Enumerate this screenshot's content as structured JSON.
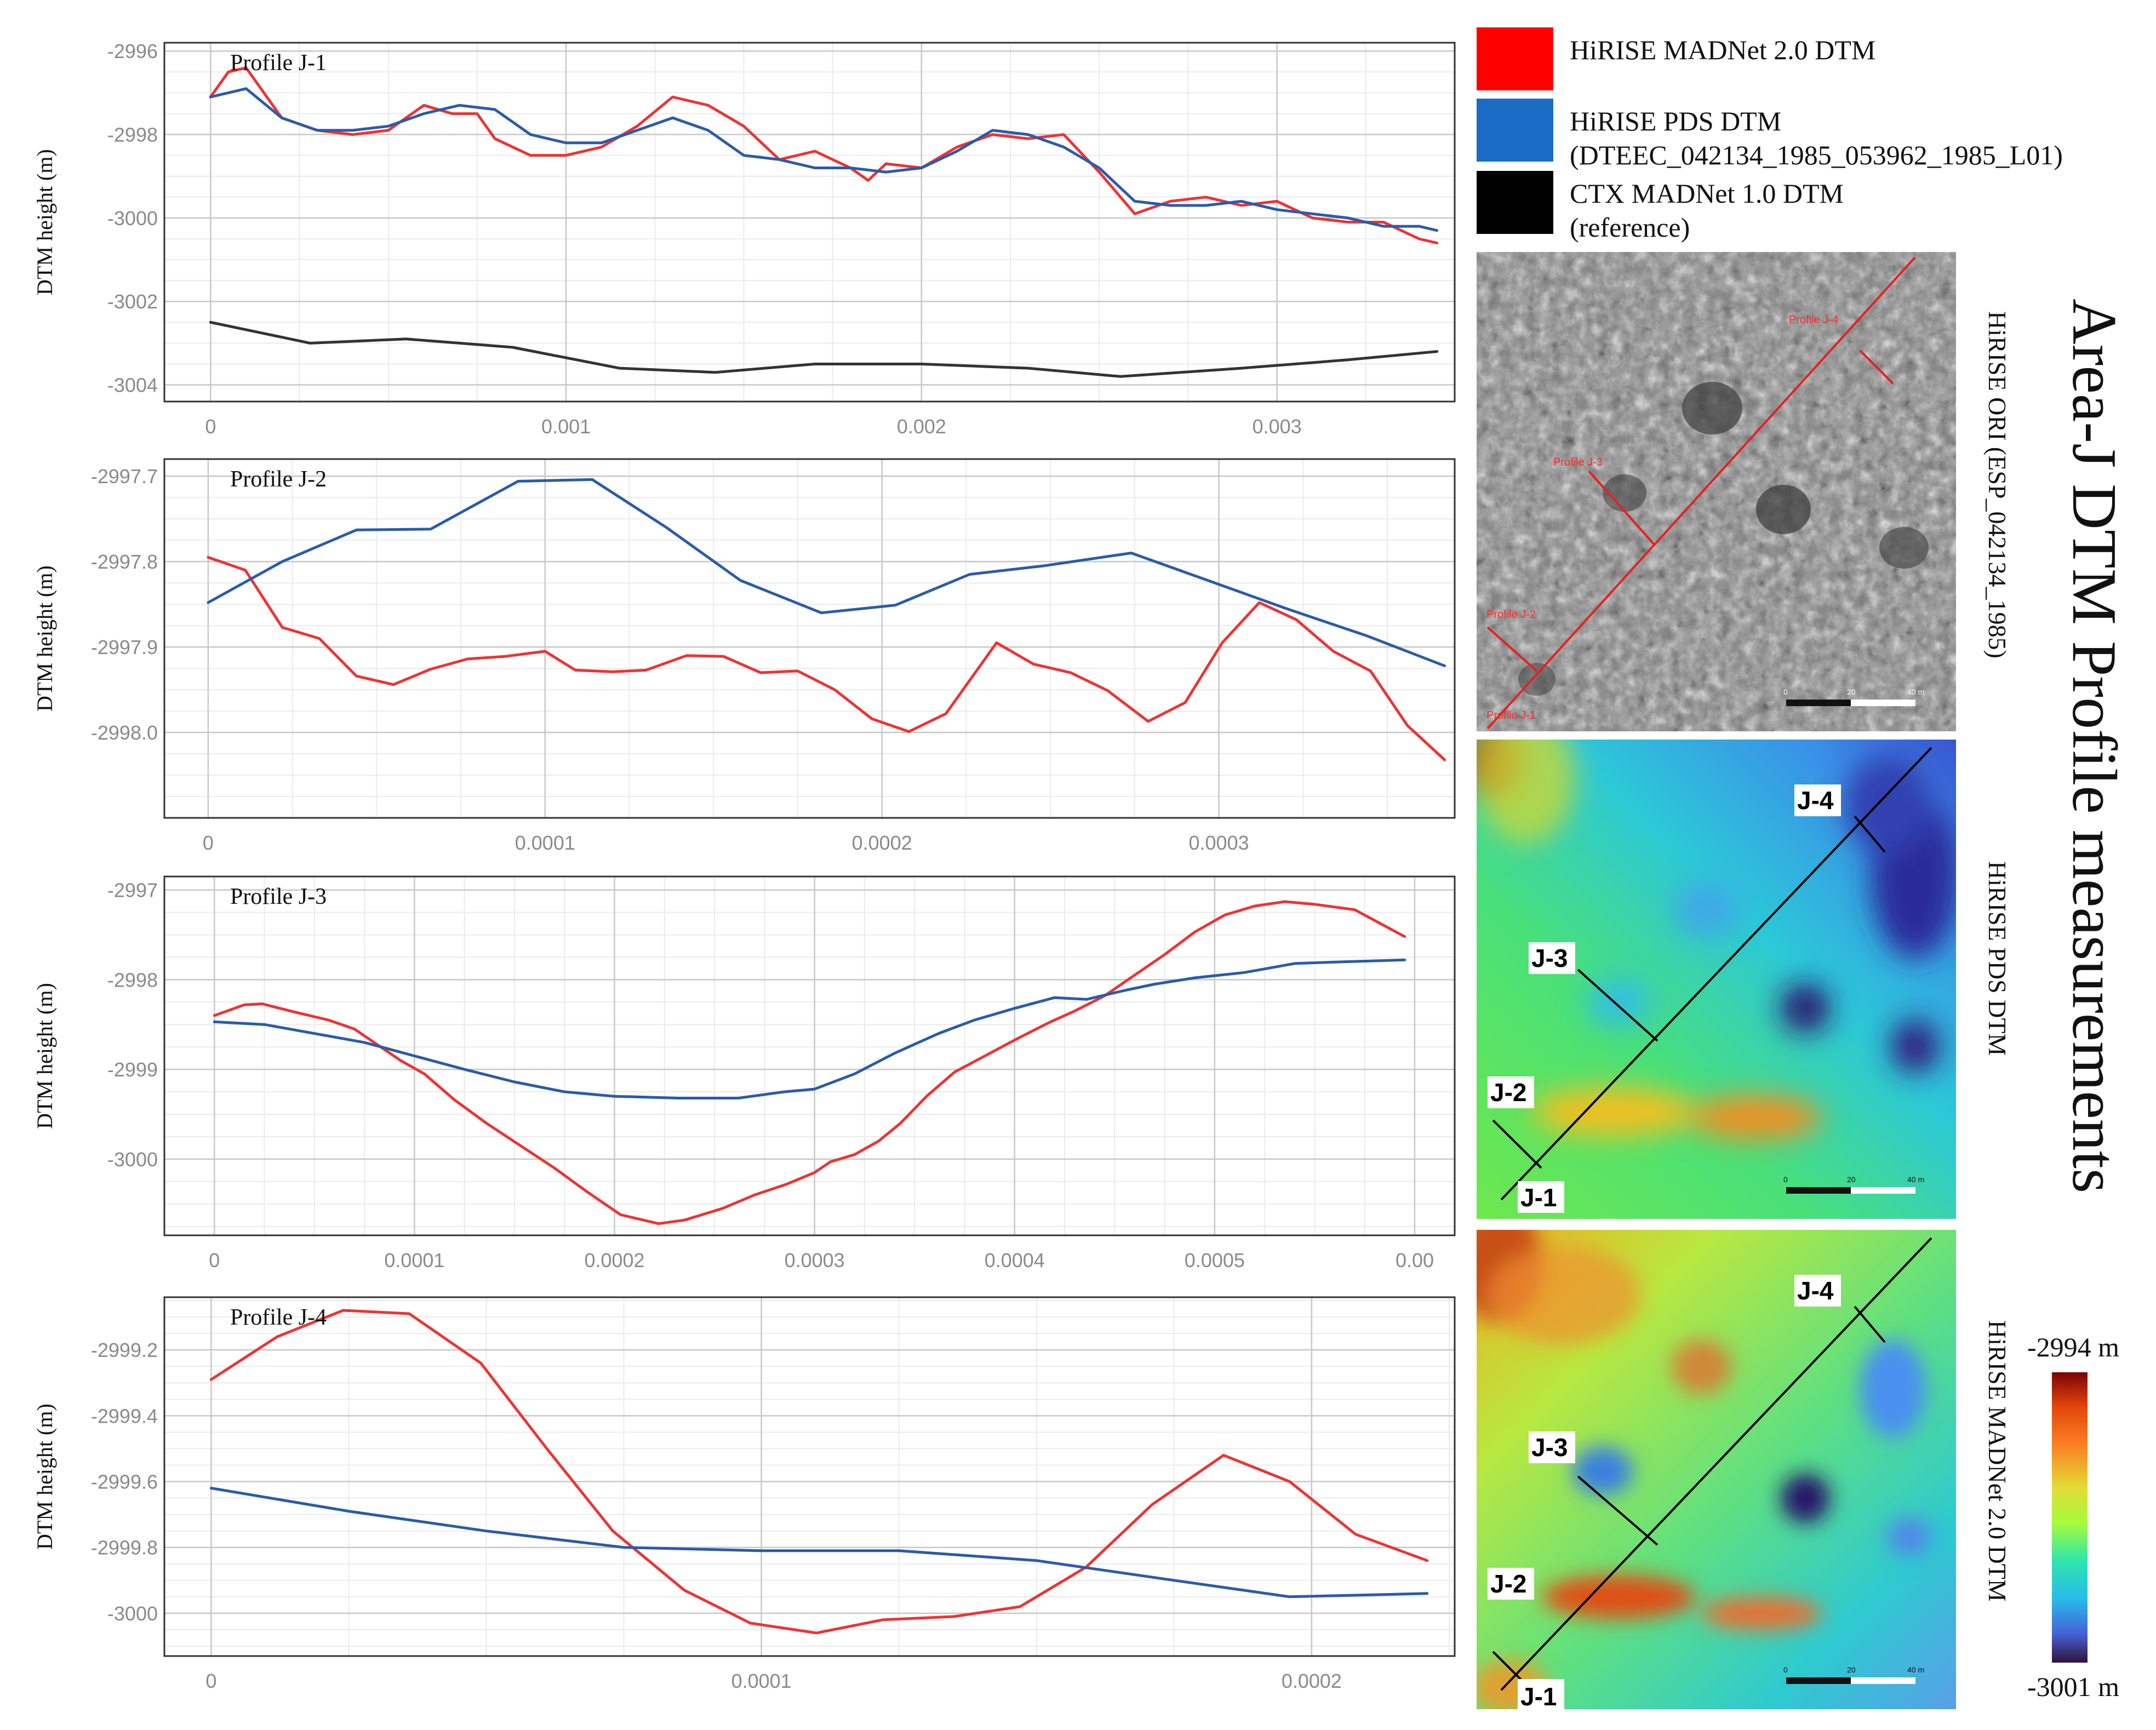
{
  "chart_data": [
    {
      "type": "line",
      "title": "Profile J-1",
      "ylabel": "DTM height (m)",
      "xlabel": "",
      "xlim": [
        -0.00013,
        0.0035
      ],
      "ylim": [
        -3004.4,
        -2995.8
      ],
      "xticks": [
        0,
        0.001,
        0.002,
        0.003
      ],
      "xtick_labels": [
        "0",
        "0.001",
        "0.002",
        "0.003"
      ],
      "yticks": [
        -2996,
        -2998,
        -3000,
        -3002,
        -3004
      ],
      "ytick_labels": [
        "-2996",
        "-2998",
        "-3000",
        "-3002",
        "-3004"
      ],
      "grid": true,
      "series": [
        {
          "name": "HiRISE MADNet 2.0 DTM",
          "color": "#ee3333",
          "x": [
            0,
            5e-05,
            0.0001,
            0.00015,
            0.0002,
            0.0003,
            0.0004,
            0.0005,
            0.0006,
            0.00068,
            0.00075,
            0.0008,
            0.0009,
            0.001,
            0.0011,
            0.0012,
            0.0013,
            0.0014,
            0.0015,
            0.0016,
            0.0017,
            0.0018,
            0.00185,
            0.0019,
            0.002,
            0.0021,
            0.0022,
            0.0023,
            0.0024,
            0.0025,
            0.0026,
            0.0027,
            0.0028,
            0.0029,
            0.003,
            0.0031,
            0.0032,
            0.0033,
            0.0034,
            0.00345
          ],
          "y": [
            -2997.1,
            -2996.5,
            -2996.4,
            -2997.0,
            -2997.6,
            -2997.9,
            -2998.0,
            -2997.9,
            -2997.3,
            -2997.5,
            -2997.5,
            -2998.1,
            -2998.5,
            -2998.5,
            -2998.3,
            -2997.8,
            -2997.1,
            -2997.3,
            -2997.8,
            -2998.6,
            -2998.4,
            -2998.8,
            -2999.1,
            -2998.7,
            -2998.8,
            -2998.3,
            -2998.0,
            -2998.1,
            -2998.0,
            -2998.9,
            -2999.9,
            -2999.6,
            -2999.5,
            -2999.7,
            -2999.6,
            -3000.0,
            -3000.1,
            -3000.1,
            -3000.5,
            -3000.6
          ]
        },
        {
          "name": "HiRISE PDS DTM",
          "color": "#2a5bab",
          "x": [
            0,
            0.0001,
            0.0002,
            0.0003,
            0.0004,
            0.0005,
            0.0006,
            0.0007,
            0.0008,
            0.0009,
            0.001,
            0.0011,
            0.0012,
            0.0013,
            0.0014,
            0.0015,
            0.0016,
            0.0017,
            0.0018,
            0.0019,
            0.002,
            0.0021,
            0.0022,
            0.0023,
            0.0024,
            0.0025,
            0.0026,
            0.0027,
            0.0028,
            0.0029,
            0.003,
            0.0031,
            0.0032,
            0.0033,
            0.0034,
            0.00345
          ],
          "y": [
            -2997.1,
            -2996.9,
            -2997.6,
            -2997.9,
            -2997.9,
            -2997.8,
            -2997.5,
            -2997.3,
            -2997.4,
            -2998.0,
            -2998.2,
            -2998.2,
            -2997.9,
            -2997.6,
            -2997.9,
            -2998.5,
            -2998.6,
            -2998.8,
            -2998.8,
            -2998.9,
            -2998.8,
            -2998.4,
            -2997.9,
            -2998.0,
            -2998.3,
            -2998.8,
            -2999.6,
            -2999.7,
            -2999.7,
            -2999.6,
            -2999.8,
            -2999.9,
            -3000.0,
            -3000.2,
            -3000.2,
            -3000.3
          ]
        },
        {
          "name": "CTX MADNet 1.0 DTM",
          "color": "#333333",
          "x": [
            0,
            0.00028,
            0.00055,
            0.00085,
            0.00115,
            0.00142,
            0.0017,
            0.002,
            0.0023,
            0.00256,
            0.0029,
            0.0032,
            0.00345
          ],
          "y": [
            -3002.5,
            -3003.0,
            -3002.9,
            -3003.1,
            -3003.6,
            -3003.7,
            -3003.5,
            -3003.5,
            -3003.6,
            -3003.8,
            -3003.6,
            -3003.4,
            -3003.2
          ]
        }
      ]
    },
    {
      "type": "line",
      "title": "Profile J-2",
      "ylabel": "DTM height (m)",
      "xlabel": "",
      "xlim": [
        -1.3e-05,
        0.00037
      ],
      "ylim": [
        -2998.1,
        -2997.68
      ],
      "xticks": [
        0,
        0.0001,
        0.0002,
        0.0003
      ],
      "xtick_labels": [
        "0",
        "0.0001",
        "0.0002",
        "0.0003"
      ],
      "yticks": [
        -2997.7,
        -2997.8,
        -2997.9,
        -2998.0
      ],
      "ytick_labels": [
        "-2997.7",
        "-2997.8",
        "-2997.9",
        "-2998.0"
      ],
      "grid": true,
      "series": [
        {
          "name": "HiRISE MADNet 2.0 DTM",
          "color": "#ee3333",
          "x": [
            0,
            1.1e-05,
            2.2e-05,
            3.3e-05,
            4.4e-05,
            5.5e-05,
            6.6e-05,
            7.7e-05,
            8.8e-05,
            0.0001,
            0.000109,
            0.00012,
            0.00013,
            0.000142,
            0.000153,
            0.000164,
            0.000175,
            0.000186,
            0.000197,
            0.000208,
            0.000219,
            0.000234,
            0.000245,
            0.000256,
            0.000267,
            0.000279,
            0.00029,
            0.000301,
            0.000312,
            0.000323,
            0.000334,
            0.000345,
            0.000356,
            0.000367
          ],
          "y": [
            -2997.795,
            -2997.81,
            -2997.877,
            -2997.89,
            -2997.934,
            -2997.944,
            -2997.926,
            -2997.914,
            -2997.911,
            -2997.905,
            -2997.927,
            -2997.929,
            -2997.927,
            -2997.91,
            -2997.911,
            -2997.93,
            -2997.928,
            -2997.95,
            -2997.984,
            -2997.999,
            -2997.978,
            -2997.895,
            -2997.92,
            -2997.93,
            -2997.951,
            -2997.987,
            -2997.965,
            -2997.895,
            -2997.848,
            -2997.868,
            -2997.905,
            -2997.928,
            -2997.992,
            -2998.032
          ]
        },
        {
          "name": "HiRISE PDS DTM",
          "color": "#2a5bab",
          "x": [
            0,
            2.2e-05,
            4.4e-05,
            6.6e-05,
            9.2e-05,
            0.000114,
            0.000136,
            0.000158,
            0.000182,
            0.000204,
            0.000226,
            0.000248,
            0.000274,
            0.000296,
            0.00032,
            0.000344,
            0.000367
          ],
          "y": [
            -2997.848,
            -2997.8,
            -2997.763,
            -2997.762,
            -2997.706,
            -2997.704,
            -2997.76,
            -2997.822,
            -2997.86,
            -2997.851,
            -2997.815,
            -2997.805,
            -2997.79,
            -2997.821,
            -2997.855,
            -2997.887,
            -2997.922
          ]
        }
      ]
    },
    {
      "type": "line",
      "title": "Profile J-3",
      "ylabel": "DTM height (m)",
      "xlabel": "",
      "xlim": [
        -2.5e-05,
        0.00062
      ],
      "ylim": [
        -3000.85,
        -2996.85
      ],
      "xticks": [
        0,
        0.0001,
        0.0002,
        0.0003,
        0.0004,
        0.0005,
        0.0006
      ],
      "xtick_labels": [
        "0",
        "0.0001",
        "0.0002",
        "0.0003",
        "0.0004",
        "0.0005",
        "0.00"
      ],
      "yticks": [
        -2997,
        -2998,
        -2999,
        -3000
      ],
      "ytick_labels": [
        "-2997",
        "-2998",
        "-2999",
        "-3000"
      ],
      "grid": true,
      "series": [
        {
          "name": "HiRISE MADNet 2.0 DTM",
          "color": "#ee3333",
          "x": [
            0,
            1.5e-05,
            2.4e-05,
            4e-05,
            5.7e-05,
            7e-05,
            9.3e-05,
            0.000105,
            0.00012,
            0.000136,
            0.000153,
            0.00017,
            0.000186,
            0.000203,
            0.000222,
            0.000235,
            0.000254,
            0.00027,
            0.000286,
            0.0003,
            0.000308,
            0.00032,
            0.000332,
            0.000343,
            0.000356,
            0.00037,
            0.000386,
            0.000402,
            0.000418,
            0.00043,
            0.000445,
            0.00046,
            0.000475,
            0.00049,
            0.000505,
            0.00052,
            0.000535,
            0.00055,
            0.00057,
            0.000595
          ],
          "y": [
            -2998.4,
            -2998.28,
            -2998.27,
            -2998.36,
            -2998.45,
            -2998.55,
            -2998.9,
            -2999.05,
            -2999.34,
            -2999.6,
            -2999.85,
            -3000.1,
            -3000.36,
            -3000.62,
            -3000.72,
            -3000.68,
            -3000.55,
            -3000.4,
            -3000.28,
            -3000.15,
            -3000.03,
            -2999.95,
            -2999.8,
            -2999.6,
            -2999.3,
            -2999.03,
            -2998.84,
            -2998.65,
            -2998.47,
            -2998.35,
            -2998.18,
            -2997.95,
            -2997.72,
            -2997.47,
            -2997.28,
            -2997.18,
            -2997.13,
            -2997.16,
            -2997.22,
            -2997.52
          ]
        },
        {
          "name": "HiRISE PDS DTM",
          "color": "#2a5bab",
          "x": [
            0,
            2.5e-05,
            5e-05,
            7.5e-05,
            0.0001,
            0.000125,
            0.00015,
            0.000175,
            0.0002,
            0.000232,
            0.000262,
            0.000285,
            0.0003,
            0.00032,
            0.00034,
            0.000362,
            0.00038,
            0.0004,
            0.00042,
            0.000436,
            0.000455,
            0.00047,
            0.00049,
            0.000515,
            0.00054,
            0.000565,
            0.000595
          ],
          "y": [
            -2998.47,
            -2998.5,
            -2998.6,
            -2998.7,
            -2998.85,
            -2999.0,
            -2999.14,
            -2999.25,
            -2999.3,
            -2999.32,
            -2999.32,
            -2999.25,
            -2999.22,
            -2999.05,
            -2998.82,
            -2998.6,
            -2998.45,
            -2998.32,
            -2998.2,
            -2998.22,
            -2998.12,
            -2998.05,
            -2997.98,
            -2997.92,
            -2997.82,
            -2997.8,
            -2997.78
          ]
        }
      ]
    },
    {
      "type": "line",
      "title": "Profile J-4",
      "ylabel": "DTM height (m)",
      "xlabel": "",
      "xlim": [
        -8.5e-06,
        0.000226
      ],
      "ylim": [
        -3000.13,
        -2999.04
      ],
      "xticks": [
        0,
        0.0001,
        0.0002
      ],
      "xtick_labels": [
        "0",
        "0.0001",
        "0.0002"
      ],
      "yticks": [
        -2999.2,
        -2999.4,
        -2999.6,
        -2999.8,
        -3000
      ],
      "ytick_labels": [
        "-2999.2",
        "-2999.4",
        "-2999.6",
        "-2999.8",
        "-3000"
      ],
      "grid": true,
      "series": [
        {
          "name": "HiRISE MADNet 2.0 DTM",
          "color": "#ee3333",
          "x": [
            0,
            1.2e-05,
            2.4e-05,
            3.6e-05,
            4.9e-05,
            6.1e-05,
            7.3e-05,
            8.6e-05,
            9.8e-05,
            0.00011,
            0.000122,
            0.000135,
            0.000147,
            0.000159,
            0.000171,
            0.000184,
            0.000196,
            0.000208,
            0.000221
          ],
          "y": [
            -2999.29,
            -2999.16,
            -2999.08,
            -2999.09,
            -2999.24,
            -2999.5,
            -2999.75,
            -2999.93,
            -3000.03,
            -3000.06,
            -3000.02,
            -3000.01,
            -2999.98,
            -2999.86,
            -2999.67,
            -2999.52,
            -2999.6,
            -2999.76,
            -2999.84
          ]
        },
        {
          "name": "HiRISE PDS DTM",
          "color": "#2a5bab",
          "x": [
            0,
            2.5e-05,
            5e-05,
            7.5e-05,
            0.0001,
            0.000125,
            0.00015,
            0.000175,
            0.000196,
            0.000221
          ],
          "y": [
            -2999.62,
            -2999.69,
            -2999.75,
            -2999.8,
            -2999.81,
            -2999.81,
            -2999.84,
            -2999.9,
            -2999.95,
            -2999.94
          ]
        }
      ]
    }
  ],
  "legend": {
    "items": [
      {
        "color": "#ff0000",
        "lines": [
          "HiRISE MADNet 2.0 DTM"
        ]
      },
      {
        "color": "#1a6cc4",
        "lines": [
          "HiRISE PDS DTM",
          "(DTEEC_042134_1985_053962_1985_L01)"
        ]
      },
      {
        "color": "#000000",
        "lines": [
          "CTX MADNet 1.0 DTM",
          "(reference)"
        ]
      }
    ]
  },
  "figure_title": "Area-J DTM Profile measurements",
  "panels": {
    "ori_label": "HiRISE ORI (ESP_042134_1985)",
    "pds_label": "HiRISE PDS DTM",
    "madnet_label": "HiRISE MADNet 2.0 DTM"
  },
  "map_markers": {
    "ori": [
      "Profile J-1",
      "Profile J-2",
      "Profile J-3",
      "Profile J-4"
    ],
    "dtm": [
      "J-1",
      "J-2",
      "J-3",
      "J-4"
    ]
  },
  "scalebar": {
    "labels": [
      "0",
      "20",
      "40 m"
    ]
  },
  "colorbar": {
    "max_label": "-2994 m",
    "min_label": "-3001 m"
  }
}
